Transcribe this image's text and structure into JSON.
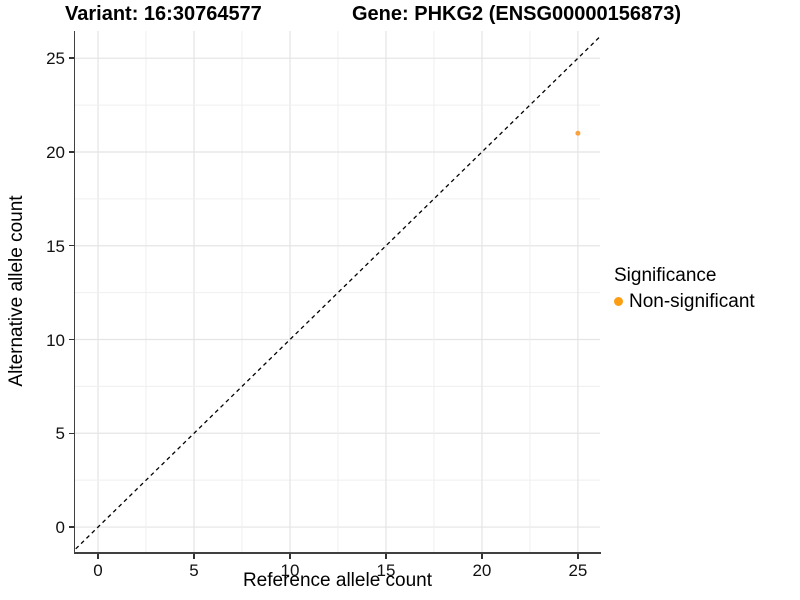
{
  "titles": {
    "variant": "Variant: 16:30764577",
    "gene": "Gene: PHKG2 (ENSG00000156873)"
  },
  "chart_data": {
    "type": "scatter",
    "title": "Variant: 16:30764577  /  Gene: PHKG2 (ENSG00000156873)",
    "xlabel": "Reference allele count",
    "ylabel": "Alternative allele count",
    "x_ticks": [
      0,
      5,
      10,
      15,
      20,
      25
    ],
    "y_ticks": [
      0,
      5,
      10,
      15,
      20,
      25
    ],
    "grid_step": 2.5,
    "grid_max": 25,
    "x_range": [
      -1.2,
      26.15
    ],
    "y_range": [
      -1.33,
      26.45
    ],
    "series": [
      {
        "name": "Non-significant",
        "points": [
          {
            "x": 25,
            "y": 21
          }
        ],
        "color": "#F9A242"
      }
    ],
    "identity_line": {
      "type": "dashed",
      "color": "#000000",
      "from": -2,
      "to": 28
    },
    "legend": {
      "title": "Significance",
      "position": "right",
      "items": [
        {
          "label": "Non-significant",
          "color": "#FB9E13"
        }
      ]
    },
    "colors": {
      "grid_major": "#E4E4E4",
      "grid_minor": "#EFEFEF",
      "axis_line": "#404040",
      "tick": "#333333"
    }
  }
}
